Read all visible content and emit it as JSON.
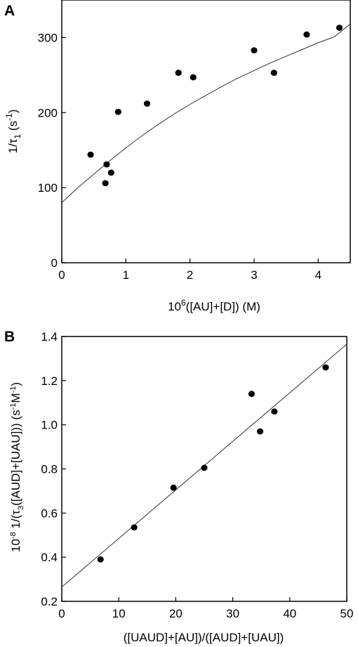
{
  "chart_data": [
    {
      "panel": "A",
      "type": "scatter",
      "title": "",
      "xlabel": {
        "pre": "10",
        "sup": "6",
        "post": "([AU]+[D])   (M)"
      },
      "ylabel": {
        "pre": "1/τ",
        "sub": "1",
        "mid": " (s",
        "sup": "-1",
        "post": ")"
      },
      "xlim": [
        0,
        4.5
      ],
      "ylim": [
        0,
        350
      ],
      "xticks": [
        0,
        1,
        2,
        3,
        4
      ],
      "yticks": [
        0,
        100,
        200,
        300
      ],
      "points": [
        {
          "x": 0.45,
          "y": 144
        },
        {
          "x": 0.68,
          "y": 106
        },
        {
          "x": 0.7,
          "y": 131
        },
        {
          "x": 0.77,
          "y": 120
        },
        {
          "x": 0.88,
          "y": 201
        },
        {
          "x": 1.33,
          "y": 212
        },
        {
          "x": 1.82,
          "y": 253
        },
        {
          "x": 2.05,
          "y": 247
        },
        {
          "x": 3.0,
          "y": 283
        },
        {
          "x": 3.31,
          "y": 253
        },
        {
          "x": 3.82,
          "y": 304
        },
        {
          "x": 4.33,
          "y": 313
        }
      ],
      "fit": {
        "kind": "curve",
        "x": [
          0,
          0.25,
          0.5,
          0.75,
          1.0,
          1.25,
          1.5,
          1.75,
          2.0,
          2.25,
          2.5,
          2.75,
          3.0,
          3.25,
          3.5,
          3.75,
          4.0,
          4.25,
          4.5
        ],
        "y": [
          80,
          100,
          118,
          136,
          153,
          169,
          184,
          198,
          211,
          223,
          235,
          246,
          256,
          266,
          275,
          284,
          293,
          301,
          318
        ]
      }
    },
    {
      "panel": "B",
      "type": "scatter",
      "title": "",
      "xlabel": {
        "pre": "([UAUD]+[AU])/([AUD]+[UAU])",
        "sup": "",
        "post": ""
      },
      "ylabel": {
        "pre": "10",
        "sup": "-8",
        "mid": " 1/(τ",
        "sub": "3",
        "post": "([AUD]+[UAU]))  (s",
        "sup2": "-1",
        "post2": "M",
        "sup3": "-1",
        "post3": ")"
      },
      "xlim": [
        0,
        50
      ],
      "ylim": [
        0.2,
        1.4
      ],
      "xticks": [
        0,
        10,
        20,
        30,
        40,
        50
      ],
      "yticks": [
        0.2,
        0.4,
        0.6,
        0.8,
        1.0,
        1.2,
        1.4
      ],
      "ytick_labels": [
        "0.2",
        "0.4",
        "0.6",
        "0.8",
        "1.0",
        "1.2",
        "1.4"
      ],
      "points": [
        {
          "x": 6.8,
          "y": 0.39
        },
        {
          "x": 12.7,
          "y": 0.535
        },
        {
          "x": 19.6,
          "y": 0.715
        },
        {
          "x": 25.0,
          "y": 0.805
        },
        {
          "x": 33.3,
          "y": 1.14
        },
        {
          "x": 34.8,
          "y": 0.97
        },
        {
          "x": 37.3,
          "y": 1.06
        },
        {
          "x": 46.3,
          "y": 1.26
        }
      ],
      "fit": {
        "kind": "line",
        "x": [
          0,
          50
        ],
        "y": [
          0.265,
          1.365
        ]
      }
    }
  ]
}
